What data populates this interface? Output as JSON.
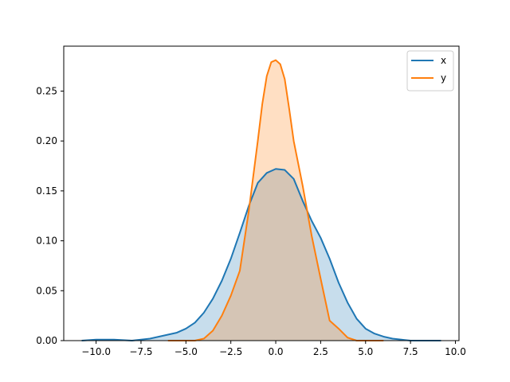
{
  "chart_data": {
    "type": "area",
    "title": "",
    "xlabel": "",
    "ylabel": "",
    "xlim": [
      -11.8,
      10.2
    ],
    "ylim": [
      0,
      0.295
    ],
    "grid": false,
    "legend_position": "top-right",
    "xticks": [
      {
        "value": -10.0,
        "label": "−10.0"
      },
      {
        "value": -7.5,
        "label": "−7.5"
      },
      {
        "value": -5.0,
        "label": "−5.0"
      },
      {
        "value": -2.5,
        "label": "−2.5"
      },
      {
        "value": 0.0,
        "label": "0.0"
      },
      {
        "value": 2.5,
        "label": "2.5"
      },
      {
        "value": 5.0,
        "label": "5.0"
      },
      {
        "value": 7.5,
        "label": "7.5"
      },
      {
        "value": 10.0,
        "label": "10.0"
      }
    ],
    "yticks": [
      {
        "value": 0.0,
        "label": "0.00"
      },
      {
        "value": 0.05,
        "label": "0.05"
      },
      {
        "value": 0.1,
        "label": "0.10"
      },
      {
        "value": 0.15,
        "label": "0.15"
      },
      {
        "value": 0.2,
        "label": "0.20"
      },
      {
        "value": 0.25,
        "label": "0.25"
      }
    ],
    "series": [
      {
        "name": "x",
        "color": "#1f77b4",
        "fill_color": "#1f77b4",
        "fill_opacity": 0.25,
        "x": [
          -10.8,
          -10.0,
          -9.0,
          -8.0,
          -7.5,
          -7.0,
          -6.5,
          -6.0,
          -5.5,
          -5.0,
          -4.5,
          -4.0,
          -3.5,
          -3.0,
          -2.5,
          -2.0,
          -1.5,
          -1.0,
          -0.5,
          0.0,
          0.5,
          1.0,
          1.5,
          2.0,
          2.5,
          3.0,
          3.5,
          4.0,
          4.5,
          5.0,
          5.5,
          6.0,
          6.5,
          7.0,
          7.5,
          8.0,
          8.5,
          9.2
        ],
        "y": [
          0.0,
          0.001,
          0.001,
          0.0,
          0.001,
          0.002,
          0.004,
          0.006,
          0.008,
          0.012,
          0.018,
          0.028,
          0.042,
          0.06,
          0.082,
          0.108,
          0.135,
          0.158,
          0.168,
          0.172,
          0.171,
          0.162,
          0.14,
          0.12,
          0.103,
          0.082,
          0.058,
          0.038,
          0.022,
          0.012,
          0.007,
          0.004,
          0.002,
          0.001,
          0.0,
          0.0,
          0.0,
          0.0
        ]
      },
      {
        "name": "y",
        "color": "#ff7f0e",
        "fill_color": "#ff7f0e",
        "fill_opacity": 0.25,
        "x": [
          -6.0,
          -5.5,
          -5.0,
          -4.5,
          -4.0,
          -3.5,
          -3.0,
          -2.5,
          -2.0,
          -1.5,
          -1.0,
          -0.75,
          -0.5,
          -0.25,
          0.0,
          0.25,
          0.5,
          0.75,
          1.0,
          1.5,
          2.0,
          2.5,
          3.0,
          3.5,
          4.0,
          4.5,
          5.0,
          5.5,
          6.0
        ],
        "y": [
          0.0,
          0.0,
          0.0,
          0.0,
          0.002,
          0.01,
          0.025,
          0.045,
          0.07,
          0.13,
          0.2,
          0.237,
          0.265,
          0.279,
          0.281,
          0.277,
          0.262,
          0.232,
          0.2,
          0.155,
          0.105,
          0.062,
          0.02,
          0.012,
          0.003,
          0.0,
          0.0,
          0.0,
          0.0
        ]
      }
    ]
  }
}
